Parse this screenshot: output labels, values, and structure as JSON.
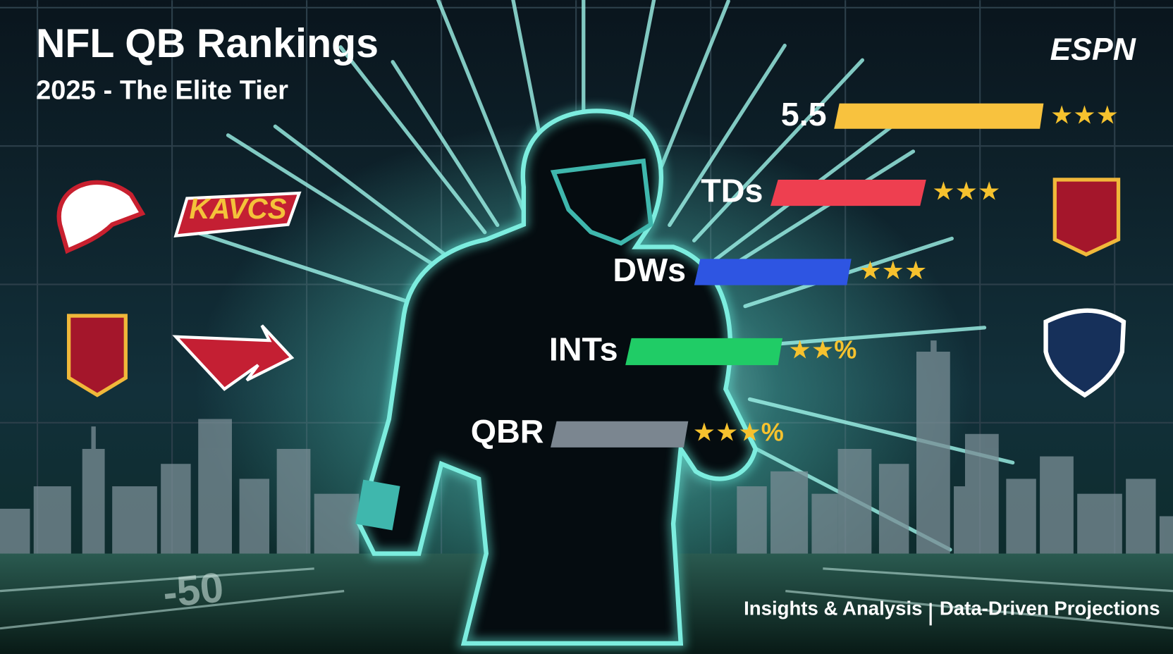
{
  "header": {
    "title": "NFL QB Rankings",
    "subtitle": "2025 - The Elite Tier",
    "brand": "ESPN"
  },
  "stats": [
    {
      "label": "5.5",
      "rating": "★★★"
    },
    {
      "label": "TDs",
      "rating": "★★★"
    },
    {
      "label": "DWs",
      "rating": "★★★"
    },
    {
      "label": "INTs",
      "rating": "★★%"
    },
    {
      "label": "QBR",
      "rating": "★★★%"
    }
  ],
  "logos": {
    "wordmark": "KAVCS"
  },
  "field_marking": "-50",
  "footer": {
    "left": "Insights & Analysis",
    "right": "Data-Driven Projections"
  }
}
